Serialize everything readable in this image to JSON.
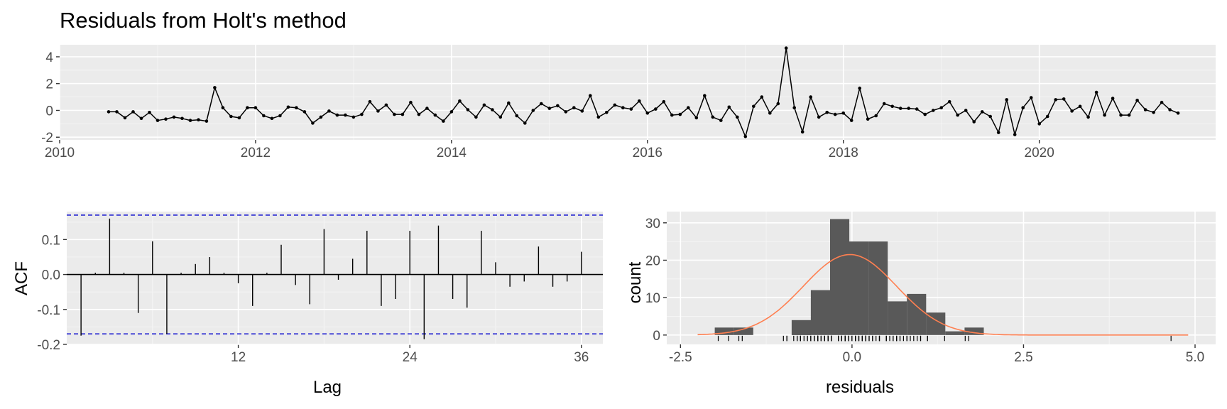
{
  "title": "Residuals from Holt's method",
  "chart_data": [
    {
      "id": "residual-series",
      "type": "line",
      "title": "Residuals from Holt's method",
      "xlabel": "",
      "ylabel": "",
      "xlim": [
        2010,
        2021.8
      ],
      "ylim": [
        -2.2,
        4.9
      ],
      "x_ticks": [
        2010,
        2012,
        2014,
        2016,
        2018,
        2020
      ],
      "y_ticks": [
        -2,
        0,
        2,
        4
      ],
      "x_tick_labels": [
        "2010",
        "2012",
        "2014",
        "2016",
        "2018",
        "2020"
      ],
      "y_tick_labels": [
        "-2",
        "0",
        "2",
        "4"
      ],
      "x_start": 2010.5,
      "frequency": 12,
      "grid": true,
      "series": [
        {
          "color": "#000000",
          "values": [
            -0.1,
            -0.1,
            -0.55,
            -0.1,
            -0.6,
            -0.15,
            -0.75,
            -0.65,
            -0.5,
            -0.6,
            -0.75,
            -0.7,
            -0.8,
            1.7,
            0.2,
            -0.45,
            -0.55,
            0.2,
            0.2,
            -0.4,
            -0.6,
            -0.4,
            0.25,
            0.2,
            -0.1,
            -0.95,
            -0.5,
            -0.05,
            -0.35,
            -0.35,
            -0.5,
            -0.3,
            0.65,
            -0.05,
            0.4,
            -0.3,
            -0.3,
            0.6,
            -0.3,
            0.15,
            -0.35,
            -0.8,
            -0.1,
            0.7,
            0.05,
            -0.5,
            0.4,
            0.05,
            -0.5,
            0.55,
            -0.4,
            -0.95,
            0.0,
            0.5,
            0.15,
            0.35,
            -0.1,
            0.2,
            -0.05,
            1.1,
            -0.5,
            -0.15,
            0.4,
            0.2,
            0.1,
            0.7,
            -0.2,
            0.1,
            0.65,
            -0.35,
            -0.3,
            0.2,
            -0.55,
            1.1,
            -0.5,
            -0.75,
            0.25,
            -0.5,
            -1.95,
            0.3,
            1.0,
            -0.2,
            0.5,
            4.65,
            0.2,
            -1.6,
            1.0,
            -0.5,
            -0.15,
            -0.3,
            -0.2,
            -0.75,
            1.65,
            -0.65,
            -0.4,
            0.5,
            0.3,
            0.15,
            0.15,
            0.1,
            -0.3,
            0.0,
            0.2,
            0.65,
            -0.35,
            0.0,
            -0.85,
            -0.1,
            -0.45,
            -1.65,
            0.8,
            -1.8,
            0.2,
            0.95,
            -1.0,
            -0.45,
            0.8,
            0.85,
            -0.05,
            0.3,
            -0.5,
            1.35,
            -0.35,
            0.9,
            -0.35,
            -0.35,
            0.75,
            0.05,
            -0.15,
            0.6,
            0.05,
            -0.2
          ]
        }
      ]
    },
    {
      "id": "acf",
      "type": "bar",
      "xlabel": "Lag",
      "ylabel": "ACF",
      "xlim": [
        0,
        37.5
      ],
      "ylim": [
        -0.2,
        0.18
      ],
      "x_ticks": [
        12,
        24,
        36
      ],
      "y_ticks": [
        -0.2,
        -0.1,
        0.0,
        0.1
      ],
      "x_tick_labels": [
        "12",
        "24",
        "36"
      ],
      "y_tick_labels": [
        "-0.2",
        "-0.1",
        "0.0",
        "0.1"
      ],
      "confidence_bound": 0.17,
      "bound_color": "#0000cc",
      "grid": true,
      "lags": [
        1,
        2,
        3,
        4,
        5,
        6,
        7,
        8,
        9,
        10,
        11,
        12,
        13,
        14,
        15,
        16,
        17,
        18,
        19,
        20,
        21,
        22,
        23,
        24,
        25,
        26,
        27,
        28,
        29,
        30,
        31,
        32,
        33,
        34,
        35,
        36
      ],
      "values": [
        -0.175,
        0.005,
        0.16,
        0.005,
        -0.11,
        0.095,
        -0.17,
        0.005,
        0.03,
        0.05,
        0.005,
        -0.025,
        -0.09,
        0.005,
        0.085,
        -0.03,
        -0.085,
        0.13,
        -0.015,
        0.045,
        0.125,
        -0.09,
        -0.07,
        0.125,
        -0.185,
        0.14,
        -0.07,
        -0.095,
        0.125,
        0.035,
        -0.035,
        -0.02,
        0.08,
        -0.035,
        -0.02,
        0.065
      ]
    },
    {
      "id": "residual-histogram",
      "type": "bar",
      "xlabel": "residuals",
      "ylabel": "count",
      "xlim": [
        -2.7,
        5.3
      ],
      "ylim": [
        -2.5,
        33
      ],
      "x_ticks": [
        -2.5,
        0.0,
        2.5,
        5.0
      ],
      "y_ticks": [
        0,
        10,
        20,
        30
      ],
      "x_tick_labels": [
        "-2.5",
        "0.0",
        "2.5",
        "5.0"
      ],
      "y_tick_labels": [
        "0",
        "10",
        "20",
        "30"
      ],
      "bin_width": 0.28,
      "bin_start": -2.0,
      "counts": [
        2,
        2,
        0,
        0,
        4,
        12,
        31,
        25,
        25,
        9,
        11,
        6,
        1,
        2,
        0,
        0,
        0,
        0,
        0,
        0,
        0,
        0,
        0,
        0,
        0,
        0,
        0,
        1
      ],
      "bar_color": "#595959",
      "density_curve": {
        "color": "#ff7f50",
        "mean": -0.03,
        "sd": 0.68,
        "n": 131,
        "from": -2.25,
        "to": 4.9
      },
      "rug_color": "#000000",
      "grid": true
    }
  ]
}
